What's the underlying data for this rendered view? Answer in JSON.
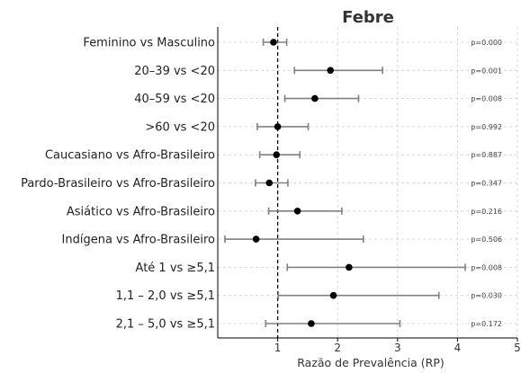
{
  "chart_data": {
    "type": "forest",
    "title": "Febre",
    "xlabel": "Razão de Prevalência (RP)",
    "ylabel": "",
    "xlim": [
      0,
      5
    ],
    "xticks": [
      1,
      2,
      3,
      4,
      5
    ],
    "reference_line": 1,
    "grid": true,
    "rows": [
      {
        "label": "Feminino vs Masculino",
        "estimate": 0.93,
        "lower": 0.76,
        "upper": 1.15,
        "p": "p=0.000"
      },
      {
        "label": "20–39 vs <20",
        "estimate": 1.88,
        "lower": 1.28,
        "upper": 2.75,
        "p": "p=0.001"
      },
      {
        "label": "40–59 vs <20",
        "estimate": 1.62,
        "lower": 1.12,
        "upper": 2.35,
        "p": "p=0.008"
      },
      {
        "label": ">60 vs <20",
        "estimate": 1.0,
        "lower": 0.66,
        "upper": 1.51,
        "p": "p=0.992"
      },
      {
        "label": "Caucasiano vs Afro-Brasileiro",
        "estimate": 0.98,
        "lower": 0.7,
        "upper": 1.37,
        "p": "p=0.887"
      },
      {
        "label": "Pardo-Brasileiro vs Afro-Brasileiro",
        "estimate": 0.86,
        "lower": 0.63,
        "upper": 1.17,
        "p": "p=0.347"
      },
      {
        "label": "Asiático vs Afro-Brasileiro",
        "estimate": 1.33,
        "lower": 0.85,
        "upper": 2.07,
        "p": "p=0.216"
      },
      {
        "label": "Indígena vs Afro-Brasileiro",
        "estimate": 0.64,
        "lower": 0.12,
        "upper": 2.43,
        "p": "p=0.506"
      },
      {
        "label": "Até 1 vs ≥5,1",
        "estimate": 2.19,
        "lower": 1.16,
        "upper": 4.13,
        "p": "p=0.008"
      },
      {
        "label": "1,1 – 2,0 vs ≥5,1",
        "estimate": 1.93,
        "lower": 1.01,
        "upper": 3.69,
        "p": "p=0.030"
      },
      {
        "label": "2,1 – 5,0 vs ≥5,1",
        "estimate": 1.56,
        "lower": 0.8,
        "upper": 3.04,
        "p": "p=0.172"
      }
    ]
  }
}
